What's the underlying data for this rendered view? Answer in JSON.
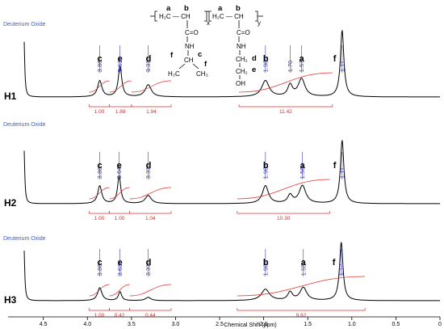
{
  "chart_data": {
    "type": "line",
    "xlabel": "Chemical Shift (ppm)",
    "x_ticks": [
      "4.5",
      "4.0",
      "3.5",
      "3.0",
      "2.5",
      "2.0",
      "1.5",
      "1.0",
      "0.5",
      "0"
    ],
    "xlim": [
      4.9,
      0.0
    ],
    "solvent_label": "Deuterium Oxide",
    "spectra": [
      {
        "name": "H1",
        "peaks": [
          {
            "letter": "c",
            "ppm": 3.86,
            "label": "3.86"
          },
          {
            "letter": "e",
            "ppm": 3.63,
            "label": "3.63"
          },
          {
            "letter": "d",
            "ppm": 3.31,
            "label": "3.31"
          },
          {
            "letter": "b",
            "ppm": 1.98,
            "label": "1.98"
          },
          {
            "letter": "",
            "ppm": 1.7,
            "label": "1.70"
          },
          {
            "letter": "a",
            "ppm": 1.57,
            "label": "1.57"
          },
          {
            "letter": "f",
            "ppm": 1.11,
            "label": "1.11"
          }
        ],
        "integrations": [
          {
            "from": 3.98,
            "to": 3.75,
            "value": "1.00"
          },
          {
            "from": 3.75,
            "to": 3.5,
            "value": "1.88"
          },
          {
            "from": 3.5,
            "to": 3.05,
            "value": "1.94"
          },
          {
            "from": 2.28,
            "to": 1.22,
            "value": "11.42"
          }
        ]
      },
      {
        "name": "H2",
        "peaks": [
          {
            "letter": "c",
            "ppm": 3.86,
            "label": "3.86"
          },
          {
            "letter": "e",
            "ppm": 3.64,
            "label": "3.64"
          },
          {
            "letter": "d",
            "ppm": 3.31,
            "label": "3.31"
          },
          {
            "letter": "b",
            "ppm": 1.98,
            "label": "1.98"
          },
          {
            "letter": "a",
            "ppm": 1.56,
            "label": "1.56"
          },
          {
            "letter": "f",
            "ppm": 1.11,
            "label": "1.11"
          }
        ],
        "integrations": [
          {
            "from": 3.98,
            "to": 3.75,
            "value": "1.00"
          },
          {
            "from": 3.75,
            "to": 3.52,
            "value": "1.00"
          },
          {
            "from": 3.52,
            "to": 3.05,
            "value": "1.04"
          },
          {
            "from": 2.3,
            "to": 1.25,
            "value": "10.30"
          }
        ]
      },
      {
        "name": "H3",
        "peaks": [
          {
            "letter": "c",
            "ppm": 3.86,
            "label": "3.86"
          },
          {
            "letter": "e",
            "ppm": 3.63,
            "label": "3.63"
          },
          {
            "letter": "d",
            "ppm": 3.31,
            "label": "3.31"
          },
          {
            "letter": "b",
            "ppm": 1.98,
            "label": "1.98"
          },
          {
            "letter": "a",
            "ppm": 1.55,
            "label": "1.55"
          },
          {
            "letter": "f",
            "ppm": 1.12,
            "label": "1.12"
          }
        ],
        "integrations": [
          {
            "from": 3.98,
            "to": 3.75,
            "value": "1.00"
          },
          {
            "from": 3.75,
            "to": 3.52,
            "value": "0.42"
          },
          {
            "from": 3.52,
            "to": 3.05,
            "value": "0.44"
          },
          {
            "from": 2.3,
            "to": 0.85,
            "value": "9.62"
          }
        ]
      }
    ]
  },
  "structure": {
    "unit_x_label": "x",
    "unit_y_label": "y",
    "labels": {
      "a1": "a",
      "b1": "b",
      "a2": "a",
      "b2": "b",
      "backbone1": "H₂C — CH",
      "backbone2": "H₂C — CH",
      "co1": "C=O",
      "co2": "C=O",
      "nh1": "NH",
      "nh2": "NH",
      "ch": "CH",
      "c_tag": "c",
      "f_left": "f",
      "f_right": "f",
      "h3c": "H₃C",
      "ch3": "CH₃",
      "ch2_d": "CH₂",
      "d_tag": "d",
      "ch2_e": "CH₂",
      "e_tag": "e",
      "oh": "OH"
    }
  }
}
